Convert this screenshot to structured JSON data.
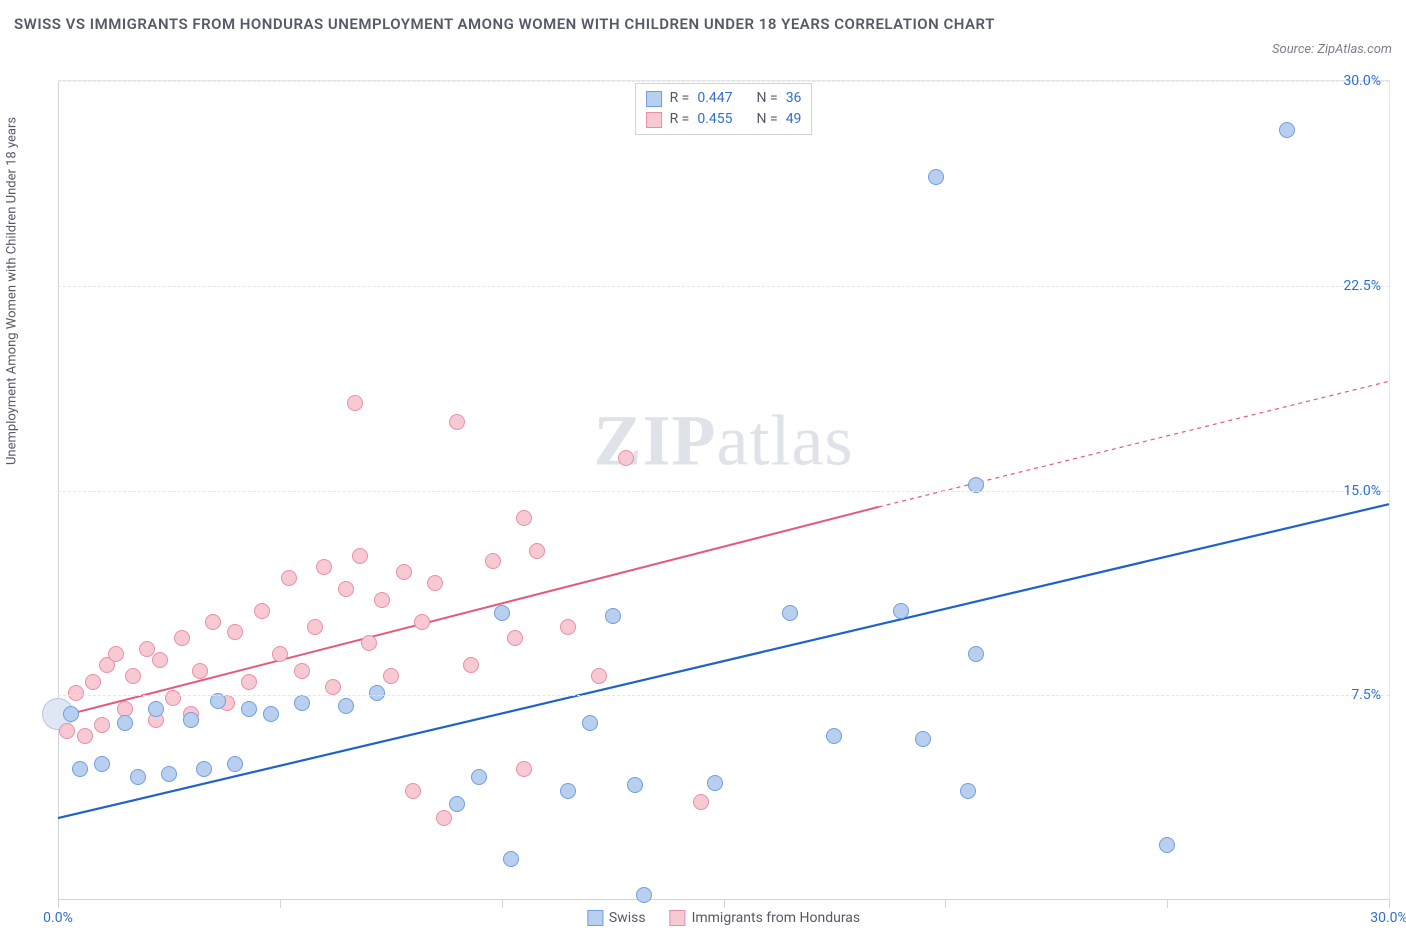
{
  "header": {
    "title": "SWISS VS IMMIGRANTS FROM HONDURAS UNEMPLOYMENT AMONG WOMEN WITH CHILDREN UNDER 18 YEARS CORRELATION CHART",
    "source": "Source: ZipAtlas.com"
  },
  "y_axis_label": "Unemployment Among Women with Children Under 18 years",
  "watermark": {
    "bold": "ZIP",
    "rest": "atlas"
  },
  "chart": {
    "type": "scatter",
    "xlim": [
      0,
      30
    ],
    "ylim": [
      0,
      30
    ],
    "x_ticks": [
      0,
      5,
      10,
      15,
      20,
      25,
      30
    ],
    "x_tick_labels": {
      "0": "0.0%",
      "30": "30.0%"
    },
    "y_gridlines": [
      7.5,
      15.0,
      22.5,
      30.0
    ],
    "y_tick_labels": {
      "7.5": "7.5%",
      "15.0": "15.0%",
      "22.5": "22.5%",
      "30.0": "30.0%"
    },
    "background_color": "#ffffff",
    "grid_color": "#e4e6ea",
    "axis_label_color": "#2f6fd0"
  },
  "series": {
    "swiss": {
      "label": "Swiss",
      "point_fill": "#b9cfef",
      "point_stroke": "#6f9fe0",
      "line_color": "#1e63c9",
      "point_radius": 8,
      "R": "0.447",
      "N": "36",
      "trend": {
        "x1": 0,
        "y1": 3.0,
        "x2": 30,
        "y2": 14.5
      },
      "points": [
        [
          0.3,
          6.8
        ],
        [
          0.5,
          4.8
        ],
        [
          1.0,
          5.0
        ],
        [
          1.5,
          6.5
        ],
        [
          1.8,
          4.5
        ],
        [
          2.2,
          7.0
        ],
        [
          2.5,
          4.6
        ],
        [
          3.0,
          6.6
        ],
        [
          3.3,
          4.8
        ],
        [
          3.6,
          7.3
        ],
        [
          4.0,
          5.0
        ],
        [
          4.3,
          7.0
        ],
        [
          4.8,
          6.8
        ],
        [
          5.5,
          7.2
        ],
        [
          6.5,
          7.1
        ],
        [
          7.2,
          7.6
        ],
        [
          9.0,
          3.5
        ],
        [
          9.5,
          4.5
        ],
        [
          10.0,
          10.5
        ],
        [
          10.2,
          1.5
        ],
        [
          11.5,
          4.0
        ],
        [
          12.0,
          6.5
        ],
        [
          12.5,
          10.4
        ],
        [
          13.0,
          4.2
        ],
        [
          13.2,
          0.2
        ],
        [
          14.8,
          4.3
        ],
        [
          16.5,
          10.5
        ],
        [
          17.5,
          6.0
        ],
        [
          19.0,
          10.6
        ],
        [
          19.5,
          5.9
        ],
        [
          19.8,
          26.5
        ],
        [
          20.5,
          4.0
        ],
        [
          20.7,
          9.0
        ],
        [
          25.0,
          2.0
        ],
        [
          27.7,
          28.2
        ],
        [
          20.7,
          15.2
        ]
      ]
    },
    "honduras": {
      "label": "Immigrants from Honduras",
      "point_fill": "#f6c9d3",
      "point_stroke": "#e98fa6",
      "line_color": "#e35b7a",
      "point_radius": 8,
      "R": "0.455",
      "N": "49",
      "trend_solid": {
        "x1": 0,
        "y1": 6.7,
        "x2": 18.5,
        "y2": 14.4
      },
      "trend_dashed": {
        "x1": 18.5,
        "y1": 14.4,
        "x2": 30,
        "y2": 19.0
      },
      "points": [
        [
          0.2,
          6.2
        ],
        [
          0.4,
          7.6
        ],
        [
          0.6,
          6.0
        ],
        [
          0.8,
          8.0
        ],
        [
          1.0,
          6.4
        ],
        [
          1.1,
          8.6
        ],
        [
          1.3,
          9.0
        ],
        [
          1.5,
          7.0
        ],
        [
          1.7,
          8.2
        ],
        [
          2.0,
          9.2
        ],
        [
          2.2,
          6.6
        ],
        [
          2.3,
          8.8
        ],
        [
          2.6,
          7.4
        ],
        [
          2.8,
          9.6
        ],
        [
          3.0,
          6.8
        ],
        [
          3.2,
          8.4
        ],
        [
          3.5,
          10.2
        ],
        [
          3.8,
          7.2
        ],
        [
          4.0,
          9.8
        ],
        [
          4.3,
          8.0
        ],
        [
          4.6,
          10.6
        ],
        [
          5.0,
          9.0
        ],
        [
          5.2,
          11.8
        ],
        [
          5.5,
          8.4
        ],
        [
          5.8,
          10.0
        ],
        [
          6.0,
          12.2
        ],
        [
          6.2,
          7.8
        ],
        [
          6.5,
          11.4
        ],
        [
          6.7,
          18.2
        ],
        [
          6.8,
          12.6
        ],
        [
          7.0,
          9.4
        ],
        [
          7.3,
          11.0
        ],
        [
          7.5,
          8.2
        ],
        [
          7.8,
          12.0
        ],
        [
          8.0,
          4.0
        ],
        [
          8.2,
          10.2
        ],
        [
          8.5,
          11.6
        ],
        [
          8.7,
          3.0
        ],
        [
          9.0,
          17.5
        ],
        [
          9.3,
          8.6
        ],
        [
          9.8,
          12.4
        ],
        [
          10.3,
          9.6
        ],
        [
          10.5,
          14.0
        ],
        [
          10.8,
          12.8
        ],
        [
          11.5,
          10.0
        ],
        [
          12.2,
          8.2
        ],
        [
          12.8,
          16.2
        ],
        [
          14.5,
          3.6
        ],
        [
          10.5,
          4.8
        ]
      ]
    }
  },
  "edge_cluster": {
    "fill": "#dfe7f4",
    "stroke": "#b6c6e2",
    "cx_pct": 0.0,
    "cy_val": 6.8,
    "radius": 16
  },
  "legend": {
    "r_label": "R =",
    "n_label": "N ="
  }
}
